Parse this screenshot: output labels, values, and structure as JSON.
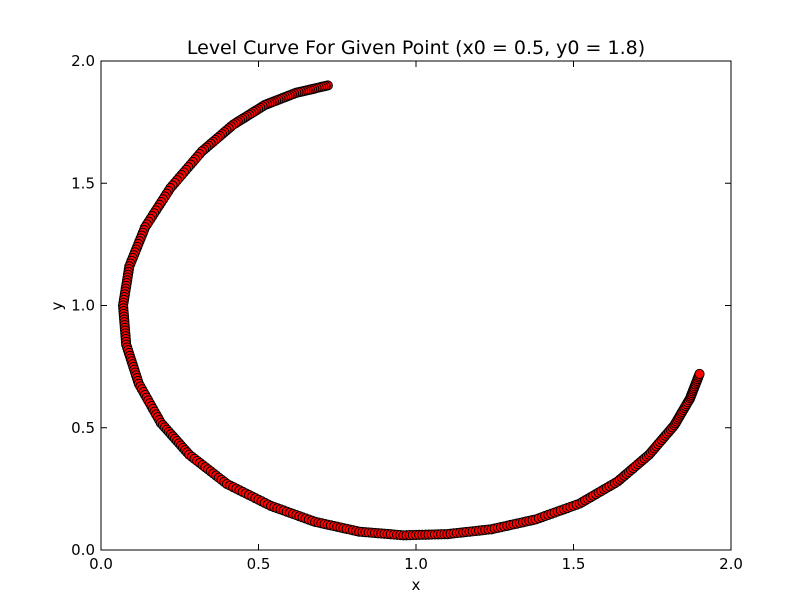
{
  "chart_data": {
    "type": "scatter",
    "title": "Level Curve For Given Point (x0 = 0.5, y0 = 1.8)",
    "xlabel": "x",
    "ylabel": "y",
    "xlim": [
      0.0,
      2.0
    ],
    "ylim": [
      0.0,
      2.0
    ],
    "xticks": [
      0.0,
      0.5,
      1.0,
      1.5,
      2.0
    ],
    "xtick_labels": [
      "0.0",
      "0.5",
      "1.0",
      "1.5",
      "2.0"
    ],
    "yticks": [
      0.0,
      0.5,
      1.0,
      1.5,
      2.0
    ],
    "ytick_labels": [
      "0.0",
      "0.5",
      "1.0",
      "1.5",
      "2.0"
    ],
    "grid": false,
    "legend": "none",
    "series": [
      {
        "marker_color": "#ff0000",
        "edge_color": "#000000",
        "points": [
          [
            0.72,
            1.9
          ],
          [
            0.62,
            1.87
          ],
          [
            0.52,
            1.82
          ],
          [
            0.42,
            1.74
          ],
          [
            0.32,
            1.63
          ],
          [
            0.22,
            1.48
          ],
          [
            0.14,
            1.32
          ],
          [
            0.09,
            1.16
          ],
          [
            0.07,
            1.0
          ],
          [
            0.08,
            0.84
          ],
          [
            0.12,
            0.68
          ],
          [
            0.19,
            0.52
          ],
          [
            0.28,
            0.39
          ],
          [
            0.4,
            0.27
          ],
          [
            0.54,
            0.18
          ],
          [
            0.68,
            0.115
          ],
          [
            0.82,
            0.075
          ],
          [
            0.96,
            0.06
          ],
          [
            1.1,
            0.065
          ],
          [
            1.24,
            0.085
          ],
          [
            1.38,
            0.125
          ],
          [
            1.52,
            0.19
          ],
          [
            1.64,
            0.28
          ],
          [
            1.74,
            0.39
          ],
          [
            1.82,
            0.51
          ],
          [
            1.87,
            0.62
          ],
          [
            1.9,
            0.72
          ]
        ]
      }
    ]
  }
}
